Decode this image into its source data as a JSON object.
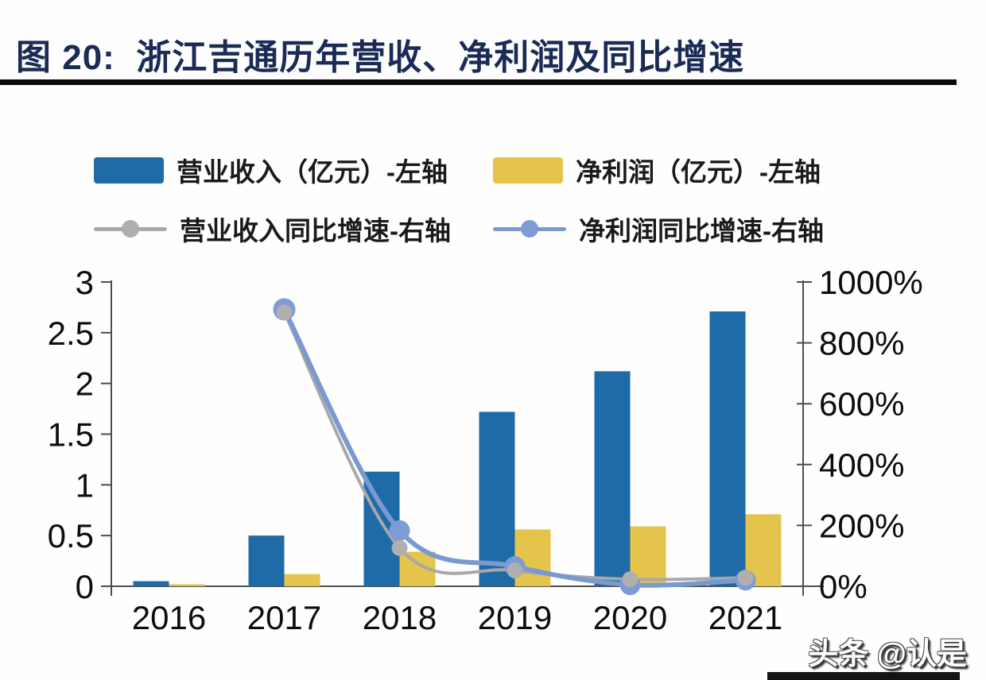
{
  "title": {
    "label": "图 20:  浙江吉通历年营收、净利润及同比增速",
    "color": "#1A2B55"
  },
  "watermark": {
    "label": "头条 @认是"
  },
  "legend": [
    {
      "type": "bar",
      "label": "营业收入（亿元）-左轴",
      "color": "#1F6BA8"
    },
    {
      "type": "bar",
      "label": "净利润（亿元）-左轴",
      "color": "#E5C44C"
    },
    {
      "type": "line",
      "label": "营业收入同比增速-右轴",
      "color": "#A8A8A8",
      "marker_color": "#AFAFAF"
    },
    {
      "type": "line",
      "label": "净利润同比增速-右轴",
      "color": "#7A99CF",
      "marker_color": "#7D9BD4"
    }
  ],
  "chart_data": {
    "type": "bar+line combo, dual axis",
    "categories": [
      "2016",
      "2017",
      "2018",
      "2019",
      "2020",
      "2021"
    ],
    "series": [
      {
        "name": "营业收入（亿元）",
        "type": "bar",
        "axis": "left",
        "color": "#1F6BA8",
        "values": [
          0.05,
          0.5,
          1.13,
          1.72,
          2.12,
          2.71
        ]
      },
      {
        "name": "净利润（亿元）",
        "type": "bar",
        "axis": "left",
        "color": "#E5C44C",
        "values": [
          0.02,
          0.12,
          0.34,
          0.56,
          0.59,
          0.71
        ]
      },
      {
        "name": "营业收入同比增速",
        "type": "line",
        "axis": "right",
        "color": "#A8A8A8",
        "marker_color": "#AFAFAF",
        "values_pct": [
          null,
          900,
          126,
          52,
          23,
          28
        ]
      },
      {
        "name": "净利润同比增速",
        "type": "line",
        "axis": "right",
        "color": "#7A99CF",
        "marker_color": "#7D9BD4",
        "values_pct": [
          null,
          910,
          183,
          65,
          5,
          20
        ]
      }
    ],
    "left_axis": {
      "min": 0,
      "max": 3,
      "tick_values": [
        0,
        0.5,
        1,
        1.5,
        2,
        2.5,
        3
      ],
      "tick_labels": [
        "0",
        "0.5",
        "1",
        "1.5",
        "2",
        "2.5",
        "3"
      ]
    },
    "right_axis": {
      "min": 0,
      "max": 1000,
      "tick_values": [
        0,
        200,
        400,
        600,
        800,
        1000
      ],
      "tick_labels": [
        "0%",
        "200%",
        "400%",
        "600%",
        "800%",
        "1000%"
      ]
    },
    "grid": false,
    "legend_position": "top"
  }
}
